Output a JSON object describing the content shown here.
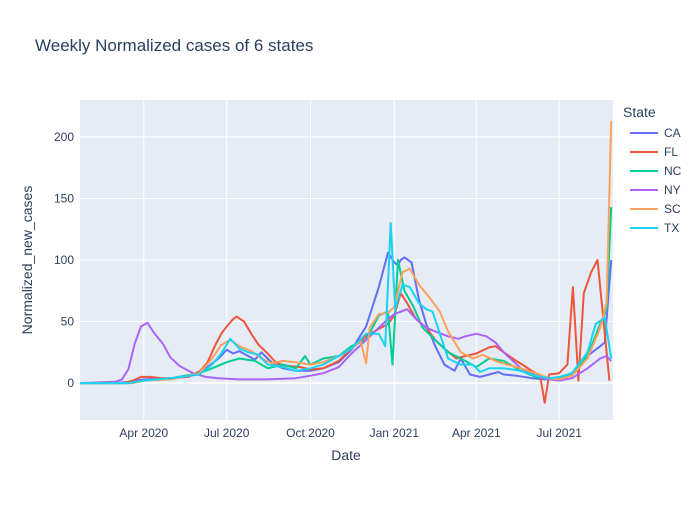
{
  "chart_data": {
    "type": "line",
    "title": "Weekly Normalized cases of 6 states",
    "xlabel": "Date",
    "ylabel": "Normalized_new_cases",
    "legend_title": "State",
    "legend_position": "right",
    "grid": true,
    "xlim": [
      "2020-01-22",
      "2021-08-29"
    ],
    "ylim": [
      -30,
      230
    ],
    "x_ticks": [
      {
        "value": "2020-04-01",
        "label": "Apr 2020"
      },
      {
        "value": "2020-07-01",
        "label": "Jul 2020"
      },
      {
        "value": "2020-10-01",
        "label": "Oct 2020"
      },
      {
        "value": "2021-01-01",
        "label": "Jan 2021"
      },
      {
        "value": "2021-04-01",
        "label": "Apr 2021"
      },
      {
        "value": "2021-07-01",
        "label": "Jul 2021"
      }
    ],
    "y_ticks": [
      0,
      50,
      100,
      150,
      200
    ],
    "series": [
      {
        "name": "CA",
        "color": "#636efa",
        "points": [
          [
            "2020-01-22",
            0
          ],
          [
            "2020-03-01",
            0
          ],
          [
            "2020-03-15",
            1
          ],
          [
            "2020-04-01",
            3
          ],
          [
            "2020-05-01",
            4
          ],
          [
            "2020-05-25",
            7
          ],
          [
            "2020-06-08",
            12
          ],
          [
            "2020-06-22",
            20
          ],
          [
            "2020-07-01",
            27
          ],
          [
            "2020-07-08",
            24
          ],
          [
            "2020-07-15",
            26
          ],
          [
            "2020-07-22",
            23
          ],
          [
            "2020-08-01",
            19
          ],
          [
            "2020-08-08",
            25
          ],
          [
            "2020-08-15",
            20
          ],
          [
            "2020-08-22",
            15
          ],
          [
            "2020-09-01",
            12
          ],
          [
            "2020-09-15",
            10
          ],
          [
            "2020-10-01",
            10
          ],
          [
            "2020-10-15",
            12
          ],
          [
            "2020-11-01",
            17
          ],
          [
            "2020-11-15",
            27
          ],
          [
            "2020-12-01",
            46
          ],
          [
            "2020-12-15",
            78
          ],
          [
            "2020-12-25",
            106
          ],
          [
            "2021-01-01",
            98
          ],
          [
            "2021-01-05",
            96
          ],
          [
            "2021-01-08",
            100
          ],
          [
            "2021-01-12",
            102
          ],
          [
            "2021-01-20",
            98
          ],
          [
            "2021-01-28",
            68
          ],
          [
            "2021-02-05",
            48
          ],
          [
            "2021-02-15",
            30
          ],
          [
            "2021-02-25",
            15
          ],
          [
            "2021-03-08",
            10
          ],
          [
            "2021-03-15",
            20
          ],
          [
            "2021-03-25",
            7
          ],
          [
            "2021-04-05",
            5
          ],
          [
            "2021-04-15",
            7
          ],
          [
            "2021-04-25",
            9
          ],
          [
            "2021-05-01",
            7
          ],
          [
            "2021-05-15",
            6
          ],
          [
            "2021-06-01",
            4
          ],
          [
            "2021-06-15",
            3
          ],
          [
            "2021-07-01",
            4
          ],
          [
            "2021-07-15",
            8
          ],
          [
            "2021-08-01",
            22
          ],
          [
            "2021-08-15",
            30
          ],
          [
            "2021-08-20",
            33
          ],
          [
            "2021-08-27",
            100
          ]
        ]
      },
      {
        "name": "FL",
        "color": "#ef553b",
        "points": [
          [
            "2020-01-22",
            0
          ],
          [
            "2020-03-10",
            0
          ],
          [
            "2020-03-20",
            2
          ],
          [
            "2020-03-29",
            5
          ],
          [
            "2020-04-08",
            5
          ],
          [
            "2020-04-20",
            4
          ],
          [
            "2020-05-01",
            4
          ],
          [
            "2020-05-20",
            5
          ],
          [
            "2020-06-01",
            9
          ],
          [
            "2020-06-10",
            17
          ],
          [
            "2020-06-18",
            30
          ],
          [
            "2020-06-25",
            40
          ],
          [
            "2020-07-01",
            46
          ],
          [
            "2020-07-08",
            52
          ],
          [
            "2020-07-12",
            54
          ],
          [
            "2020-07-20",
            50
          ],
          [
            "2020-07-28",
            40
          ],
          [
            "2020-08-05",
            31
          ],
          [
            "2020-08-15",
            24
          ],
          [
            "2020-08-25",
            16
          ],
          [
            "2020-09-05",
            14
          ],
          [
            "2020-09-20",
            13
          ],
          [
            "2020-10-01",
            11
          ],
          [
            "2020-10-15",
            12
          ],
          [
            "2020-11-01",
            18
          ],
          [
            "2020-11-15",
            28
          ],
          [
            "2020-12-01",
            38
          ],
          [
            "2020-12-15",
            44
          ],
          [
            "2020-12-25",
            48
          ],
          [
            "2021-01-01",
            55
          ],
          [
            "2021-01-08",
            73
          ],
          [
            "2021-01-15",
            65
          ],
          [
            "2021-01-25",
            52
          ],
          [
            "2021-02-05",
            45
          ],
          [
            "2021-02-15",
            35
          ],
          [
            "2021-02-25",
            28
          ],
          [
            "2021-03-10",
            20
          ],
          [
            "2021-03-20",
            22
          ],
          [
            "2021-04-01",
            24
          ],
          [
            "2021-04-15",
            29
          ],
          [
            "2021-04-22",
            30
          ],
          [
            "2021-05-01",
            25
          ],
          [
            "2021-05-15",
            18
          ],
          [
            "2021-06-01",
            10
          ],
          [
            "2021-06-10",
            6
          ],
          [
            "2021-06-15",
            -16
          ],
          [
            "2021-06-20",
            7
          ],
          [
            "2021-07-01",
            8
          ],
          [
            "2021-07-10",
            15
          ],
          [
            "2021-07-16",
            78
          ],
          [
            "2021-07-22",
            2
          ],
          [
            "2021-07-28",
            73
          ],
          [
            "2021-08-05",
            90
          ],
          [
            "2021-08-12",
            100
          ],
          [
            "2021-08-18",
            55
          ],
          [
            "2021-08-25",
            2
          ]
        ]
      },
      {
        "name": "NC",
        "color": "#00cc96",
        "points": [
          [
            "2020-01-22",
            0
          ],
          [
            "2020-03-15",
            0
          ],
          [
            "2020-04-01",
            2
          ],
          [
            "2020-05-01",
            4
          ],
          [
            "2020-06-01",
            8
          ],
          [
            "2020-06-15",
            12
          ],
          [
            "2020-07-01",
            17
          ],
          [
            "2020-07-15",
            20
          ],
          [
            "2020-08-01",
            18
          ],
          [
            "2020-08-15",
            12
          ],
          [
            "2020-09-01",
            15
          ],
          [
            "2020-09-15",
            12
          ],
          [
            "2020-09-25",
            22
          ],
          [
            "2020-10-01",
            15
          ],
          [
            "2020-10-15",
            20
          ],
          [
            "2020-11-01",
            22
          ],
          [
            "2020-11-15",
            30
          ],
          [
            "2020-12-01",
            35
          ],
          [
            "2020-12-15",
            55
          ],
          [
            "2020-12-25",
            58
          ],
          [
            "2020-12-30",
            15
          ],
          [
            "2021-01-05",
            100
          ],
          [
            "2021-01-12",
            75
          ],
          [
            "2021-01-22",
            62
          ],
          [
            "2021-02-01",
            45
          ],
          [
            "2021-02-15",
            35
          ],
          [
            "2021-03-01",
            25
          ],
          [
            "2021-03-15",
            20
          ],
          [
            "2021-04-01",
            13
          ],
          [
            "2021-04-15",
            20
          ],
          [
            "2021-05-01",
            18
          ],
          [
            "2021-05-20",
            10
          ],
          [
            "2021-06-05",
            5
          ],
          [
            "2021-06-20",
            4
          ],
          [
            "2021-07-01",
            4
          ],
          [
            "2021-07-15",
            7
          ],
          [
            "2021-08-01",
            22
          ],
          [
            "2021-08-15",
            48
          ],
          [
            "2021-08-22",
            60
          ],
          [
            "2021-08-27",
            143
          ]
        ]
      },
      {
        "name": "NY",
        "color": "#ab63fa",
        "points": [
          [
            "2020-01-22",
            0
          ],
          [
            "2020-03-01",
            1
          ],
          [
            "2020-03-08",
            3
          ],
          [
            "2020-03-15",
            11
          ],
          [
            "2020-03-22",
            32
          ],
          [
            "2020-03-29",
            46
          ],
          [
            "2020-04-05",
            49
          ],
          [
            "2020-04-12",
            41
          ],
          [
            "2020-04-22",
            32
          ],
          [
            "2020-04-30",
            21
          ],
          [
            "2020-05-10",
            14
          ],
          [
            "2020-05-25",
            8
          ],
          [
            "2020-06-08",
            5
          ],
          [
            "2020-06-22",
            4
          ],
          [
            "2020-07-15",
            3
          ],
          [
            "2020-08-15",
            3
          ],
          [
            "2020-09-15",
            4
          ],
          [
            "2020-10-01",
            6
          ],
          [
            "2020-10-15",
            8
          ],
          [
            "2020-11-01",
            13
          ],
          [
            "2020-11-15",
            24
          ],
          [
            "2020-12-01",
            35
          ],
          [
            "2020-12-15",
            45
          ],
          [
            "2020-12-25",
            52
          ],
          [
            "2021-01-01",
            56
          ],
          [
            "2021-01-08",
            58
          ],
          [
            "2021-01-15",
            60
          ],
          [
            "2021-01-25",
            52
          ],
          [
            "2021-02-05",
            45
          ],
          [
            "2021-02-15",
            42
          ],
          [
            "2021-03-01",
            38
          ],
          [
            "2021-03-12",
            36
          ],
          [
            "2021-03-20",
            38
          ],
          [
            "2021-04-01",
            40
          ],
          [
            "2021-04-12",
            38
          ],
          [
            "2021-04-22",
            33
          ],
          [
            "2021-05-01",
            25
          ],
          [
            "2021-05-20",
            12
          ],
          [
            "2021-06-05",
            6
          ],
          [
            "2021-06-20",
            3
          ],
          [
            "2021-07-01",
            2
          ],
          [
            "2021-07-15",
            4
          ],
          [
            "2021-08-01",
            12
          ],
          [
            "2021-08-15",
            20
          ],
          [
            "2021-08-22",
            22
          ],
          [
            "2021-08-27",
            18
          ]
        ]
      },
      {
        "name": "SC",
        "color": "#ffa15a",
        "points": [
          [
            "2020-01-22",
            0
          ],
          [
            "2020-03-20",
            0
          ],
          [
            "2020-04-01",
            2
          ],
          [
            "2020-05-01",
            3
          ],
          [
            "2020-06-01",
            8
          ],
          [
            "2020-06-15",
            20
          ],
          [
            "2020-06-25",
            31
          ],
          [
            "2020-07-05",
            35
          ],
          [
            "2020-07-15",
            30
          ],
          [
            "2020-07-28",
            26
          ],
          [
            "2020-08-08",
            20
          ],
          [
            "2020-08-20",
            16
          ],
          [
            "2020-09-01",
            18
          ],
          [
            "2020-09-15",
            17
          ],
          [
            "2020-10-01",
            15
          ],
          [
            "2020-10-15",
            17
          ],
          [
            "2020-11-01",
            22
          ],
          [
            "2020-11-15",
            28
          ],
          [
            "2020-11-25",
            34
          ],
          [
            "2020-12-01",
            16
          ],
          [
            "2020-12-05",
            45
          ],
          [
            "2020-12-15",
            56
          ],
          [
            "2020-12-25",
            57
          ],
          [
            "2021-01-01",
            62
          ],
          [
            "2021-01-10",
            90
          ],
          [
            "2021-01-18",
            93
          ],
          [
            "2021-01-28",
            80
          ],
          [
            "2021-02-08",
            70
          ],
          [
            "2021-02-20",
            58
          ],
          [
            "2021-03-01",
            42
          ],
          [
            "2021-03-15",
            25
          ],
          [
            "2021-03-28",
            20
          ],
          [
            "2021-04-08",
            23
          ],
          [
            "2021-04-22",
            18
          ],
          [
            "2021-05-05",
            15
          ],
          [
            "2021-05-20",
            12
          ],
          [
            "2021-06-05",
            8
          ],
          [
            "2021-06-20",
            4
          ],
          [
            "2021-07-01",
            3
          ],
          [
            "2021-07-15",
            6
          ],
          [
            "2021-08-01",
            20
          ],
          [
            "2021-08-15",
            45
          ],
          [
            "2021-08-22",
            65
          ],
          [
            "2021-08-27",
            213
          ]
        ]
      },
      {
        "name": "TX",
        "color": "#19d3f3",
        "points": [
          [
            "2020-01-22",
            0
          ],
          [
            "2020-03-15",
            0
          ],
          [
            "2020-04-01",
            2
          ],
          [
            "2020-05-01",
            4
          ],
          [
            "2020-06-01",
            7
          ],
          [
            "2020-06-15",
            15
          ],
          [
            "2020-06-25",
            24
          ],
          [
            "2020-07-05",
            36
          ],
          [
            "2020-07-15",
            28
          ],
          [
            "2020-07-25",
            25
          ],
          [
            "2020-08-05",
            23
          ],
          [
            "2020-08-15",
            15
          ],
          [
            "2020-09-01",
            13
          ],
          [
            "2020-09-15",
            10
          ],
          [
            "2020-10-01",
            12
          ],
          [
            "2020-10-15",
            15
          ],
          [
            "2020-11-01",
            22
          ],
          [
            "2020-11-15",
            28
          ],
          [
            "2020-12-01",
            40
          ],
          [
            "2020-12-15",
            40
          ],
          [
            "2020-12-22",
            30
          ],
          [
            "2020-12-28",
            130
          ],
          [
            "2021-01-02",
            60
          ],
          [
            "2021-01-10",
            80
          ],
          [
            "2021-01-18",
            78
          ],
          [
            "2021-01-28",
            65
          ],
          [
            "2021-02-05",
            60
          ],
          [
            "2021-02-12",
            58
          ],
          [
            "2021-02-20",
            40
          ],
          [
            "2021-03-01",
            20
          ],
          [
            "2021-03-15",
            15
          ],
          [
            "2021-03-28",
            15
          ],
          [
            "2021-04-05",
            9
          ],
          [
            "2021-04-15",
            12
          ],
          [
            "2021-05-01",
            12
          ],
          [
            "2021-05-20",
            10
          ],
          [
            "2021-06-05",
            6
          ],
          [
            "2021-06-20",
            4
          ],
          [
            "2021-07-01",
            5
          ],
          [
            "2021-07-15",
            8
          ],
          [
            "2021-08-01",
            25
          ],
          [
            "2021-08-10",
            48
          ],
          [
            "2021-08-20",
            53
          ],
          [
            "2021-08-27",
            20
          ]
        ]
      }
    ]
  }
}
